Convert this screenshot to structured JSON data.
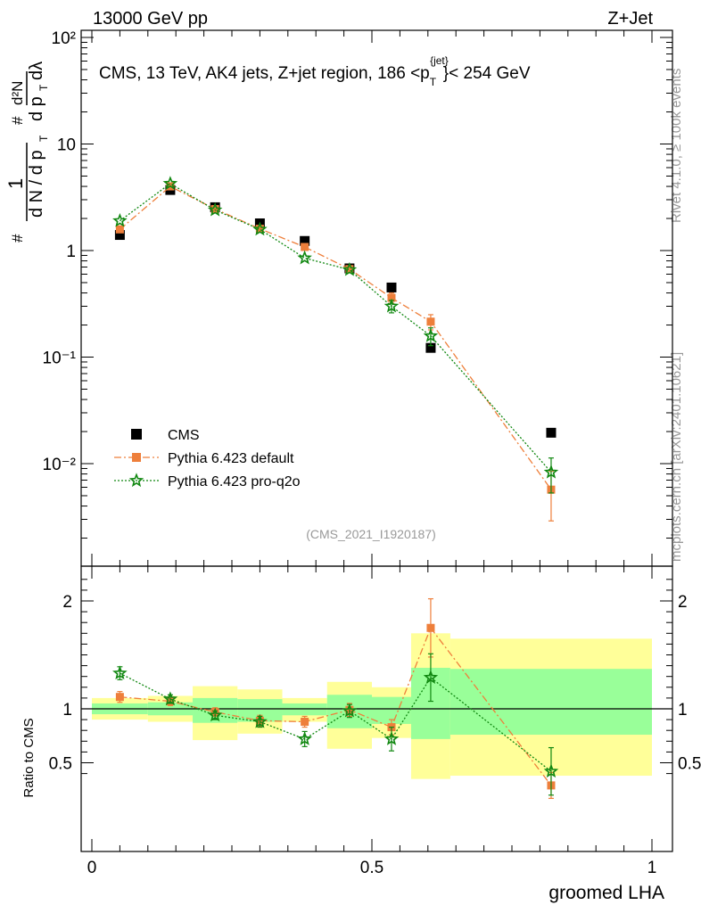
{
  "header": {
    "left": "13000 GeV pp",
    "right": "Z+Jet"
  },
  "side_labels": {
    "rivet": "Rivet 4.1.0, ≥ 100k events",
    "mcplots": "mcplots.cern.ch [arXiv:2401.10621]"
  },
  "main_title": {
    "pre": "CMS, 13 TeV, AK4 jets, Z+jet region, 186 <p",
    "sub": "T",
    "sup": "{jet}",
    "post": "}< 254 GeV"
  },
  "analysis_id": "(CMS_2021_I1920187)",
  "y_label": {
    "hash1": "#",
    "one": "1",
    "dN": "d N / d p",
    "dN_sub": "T",
    "hash2": "#",
    "dpT": "d p",
    "dpT_sub": "T",
    "d2N": "d²N",
    "dlam": "dλ"
  },
  "ratio_label": "Ratio to CMS",
  "x_label": "groomed LHA",
  "legend": [
    {
      "name": "CMS",
      "color": "#000000",
      "marker": "square"
    },
    {
      "name": "Pythia 6.423 default",
      "color": "#ee7f3b",
      "marker": "square-dashdot"
    },
    {
      "name": "Pythia 6.423 pro-q2o",
      "color": "#118811",
      "marker": "star-dotted"
    }
  ],
  "chart_data": {
    "type": "scatter",
    "x_label": "groomed LHA",
    "xlim": [
      0,
      1
    ],
    "x_ticks": [
      "0",
      "0.5",
      "1"
    ],
    "main": {
      "yscale": "log",
      "ylim": [
        0.0009,
        100
      ],
      "y_ticks": [
        "10⁻²",
        "10⁻¹",
        "1",
        "10",
        "10²"
      ],
      "series": [
        {
          "name": "CMS",
          "x": [
            0.05,
            0.14,
            0.22,
            0.3,
            0.38,
            0.46,
            0.535,
            0.605,
            0.82
          ],
          "y": [
            1.4,
            3.7,
            2.55,
            1.8,
            1.23,
            0.68,
            0.45,
            0.122,
            0.0195
          ]
        },
        {
          "name": "Pythia 6.423 default",
          "x": [
            0.05,
            0.14,
            0.22,
            0.3,
            0.38,
            0.46,
            0.535,
            0.605,
            0.82
          ],
          "y": [
            1.58,
            4.0,
            2.45,
            1.6,
            1.08,
            0.67,
            0.36,
            0.215,
            0.0057
          ],
          "err": [
            0.08,
            0.15,
            0.1,
            0.07,
            0.06,
            0.04,
            0.04,
            0.035,
            0.0028
          ]
        },
        {
          "name": "Pythia 6.423 pro-q2o",
          "x": [
            0.05,
            0.14,
            0.22,
            0.3,
            0.38,
            0.46,
            0.535,
            0.605,
            0.82
          ],
          "y": [
            1.9,
            4.25,
            2.4,
            1.58,
            0.85,
            0.66,
            0.3,
            0.158,
            0.0083
          ],
          "err": [
            0.09,
            0.16,
            0.1,
            0.07,
            0.05,
            0.04,
            0.04,
            0.03,
            0.003
          ]
        }
      ]
    },
    "ratio": {
      "ylim": [
        0.35,
        2.3
      ],
      "y_ticks": [
        "0.5",
        "1",
        "2"
      ],
      "bands": {
        "edges": [
          0.0,
          0.1,
          0.18,
          0.26,
          0.34,
          0.42,
          0.5,
          0.57,
          0.64,
          1.0
        ],
        "outer": [
          [
            0.9,
            1.1
          ],
          [
            0.88,
            1.12
          ],
          [
            0.71,
            1.21
          ],
          [
            0.77,
            1.18
          ],
          [
            0.88,
            1.1
          ],
          [
            0.63,
            1.25
          ],
          [
            0.73,
            1.2
          ],
          [
            0.35,
            1.7
          ],
          [
            0.38,
            1.65
          ]
        ],
        "inner": [
          [
            0.95,
            1.05
          ],
          [
            0.94,
            1.06
          ],
          [
            0.87,
            1.1
          ],
          [
            0.88,
            1.09
          ],
          [
            0.94,
            1.05
          ],
          [
            0.82,
            1.13
          ],
          [
            0.86,
            1.11
          ],
          [
            0.72,
            1.38
          ],
          [
            0.76,
            1.37
          ]
        ]
      },
      "series": [
        {
          "name": "Pythia 6.423 default",
          "x": [
            0.05,
            0.14,
            0.22,
            0.3,
            0.38,
            0.46,
            0.535,
            0.605,
            0.82
          ],
          "y": [
            1.11,
            1.07,
            0.97,
            0.89,
            0.88,
            0.99,
            0.83,
            1.75,
            0.29
          ],
          "err": [
            0.05,
            0.04,
            0.04,
            0.05,
            0.05,
            0.06,
            0.07,
            0.27,
            0.12
          ]
        },
        {
          "name": "Pythia 6.423 pro-q2o",
          "x": [
            0.05,
            0.14,
            0.22,
            0.3,
            0.38,
            0.46,
            0.535,
            0.605,
            0.82
          ],
          "y": [
            1.33,
            1.09,
            0.94,
            0.88,
            0.72,
            0.98,
            0.72,
            1.29,
            0.42
          ],
          "err": [
            0.06,
            0.04,
            0.04,
            0.05,
            0.07,
            0.06,
            0.11,
            0.22,
            0.22
          ]
        }
      ]
    }
  }
}
